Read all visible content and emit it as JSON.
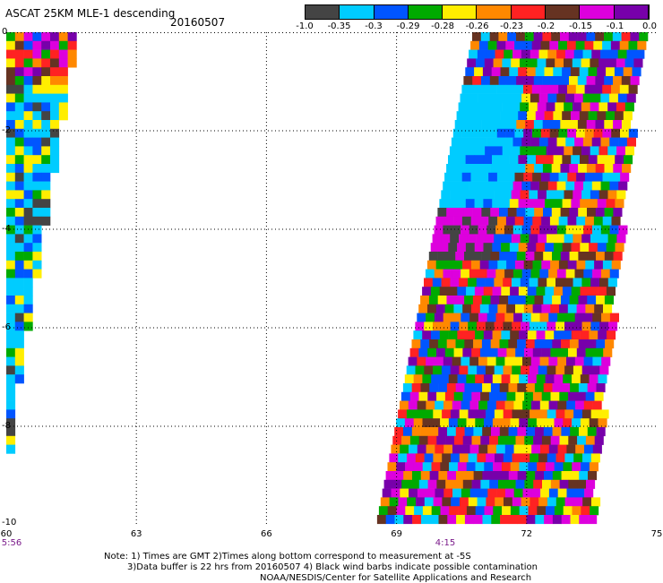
{
  "header": {
    "title": "ASCAT 25KM MLE-1 descending",
    "date": "20160507"
  },
  "colorbar": {
    "colors": [
      "#444444",
      "#00ccff",
      "#0055ff",
      "#00aa00",
      "#ffee00",
      "#ff8800",
      "#ff2222",
      "#663322",
      "#dd00dd",
      "#7700aa"
    ],
    "labels": [
      "-1.0",
      "-0.35",
      "-0.3",
      "-0.29",
      "-0.28",
      "-0.26",
      "-0.23",
      "-0.2",
      "-0.15",
      "-0.1",
      "0.0"
    ]
  },
  "axes": {
    "lat_labels": [
      "0",
      "-2",
      "-4",
      "-6",
      "-8",
      "-10"
    ],
    "lon_labels": [
      "60",
      "63",
      "66",
      "69",
      "72",
      "75"
    ],
    "time_labels": [
      {
        "lon": "60",
        "text": "5:56"
      },
      {
        "lon": "70",
        "text": "4:15"
      }
    ]
  },
  "notes": [
    "Note: 1) Times are GMT 2)Times along bottom correspond to measurement at -5S",
    "3)Data buffer is 22 hrs from 20160507 4) Black wind barbs indicate possible contamination",
    "NOAA/NESDIS/Center for Satellite Applications and Research"
  ],
  "chart_data": {
    "type": "heatmap",
    "lon_range": [
      60,
      75
    ],
    "lat_range": [
      -10,
      0
    ],
    "gridlines": true,
    "color_scale": [
      "-1.0",
      "-0.35",
      "-0.3",
      "-0.29",
      "-0.28",
      "-0.26",
      "-0.23",
      "-0.2",
      "-0.15",
      "-0.1",
      "0.0"
    ]
  }
}
